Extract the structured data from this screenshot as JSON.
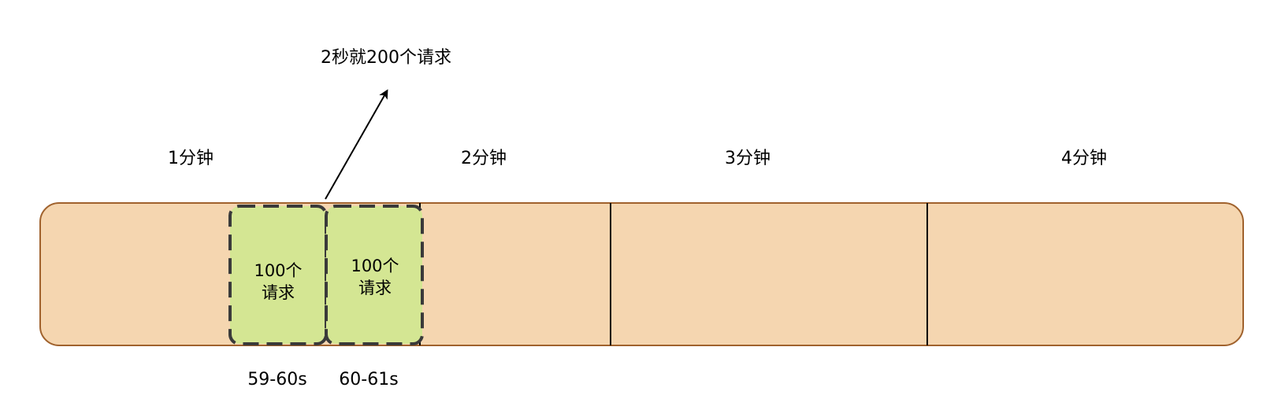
{
  "timeline": {
    "minute_labels": [
      "1分钟",
      "2分钟",
      "3分钟",
      "4分钟"
    ]
  },
  "windows": [
    {
      "line1": "100个",
      "line2": "请求",
      "time_label": "59-60s"
    },
    {
      "line1": "100个",
      "line2": "请求",
      "time_label": "60-61s"
    }
  ],
  "annotation": {
    "text": "2秒就200个请求"
  },
  "colors": {
    "timeline_fill": "#f5d6b0",
    "timeline_stroke": "#a0622d",
    "window_fill": "#d4e693",
    "window_stroke": "#3a3a3a",
    "divider": "#000000",
    "arrow": "#000000"
  }
}
